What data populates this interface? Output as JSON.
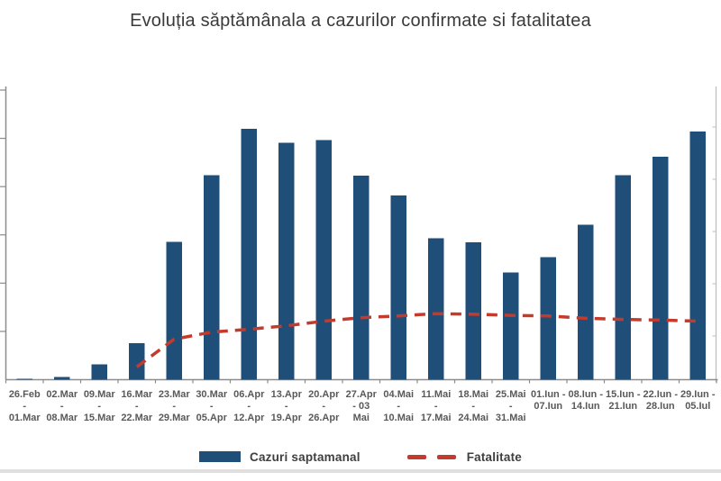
{
  "title": "Evoluția săptămânala a cazurilor confirmate si fatalitatea",
  "colors": {
    "bar": "#1f4e79",
    "line": "#c23b2d",
    "axis": "#8c8c8c",
    "axis_right": "#bdbdbd",
    "label": "#595959",
    "title": "#3a3a3a",
    "legend_text": "#3f3f3f",
    "bottom_band": "#d9d9d9"
  },
  "chart_data": {
    "type": "bar",
    "combo": "bar + dashed line (secondary axis)",
    "title": "Evoluția săptămânala a cazurilor confirmate si fatalitatea",
    "categories": [
      "26.Feb - 01.Mar",
      "02.Mar - 08.Mar",
      "09.Mar - 15.Mar",
      "16.Mar - 22.Mar",
      "23.Mar - 29.Mar",
      "30.Mar - 05.Apr",
      "06.Apr - 12.Apr",
      "13.Apr - 19.Apr",
      "20.Apr - 26.Apr",
      "27.Apr - 03 Mai",
      "04.Mai - 10.Mai",
      "11.Mai - 17.Mai",
      "18.Mai - 24.Mai",
      "25.Mai - 31.Mai",
      "01.Iun - 07.Iun",
      "08.Iun - 14.Iun",
      "15.Iun - 21.Iun",
      "22.Iun - 28.Iun",
      "29.Iun - 05.Iul"
    ],
    "categories_lines": [
      [
        "26.Feb",
        "-",
        "01.Mar"
      ],
      [
        "02.Mar",
        "-",
        "08.Mar"
      ],
      [
        "09.Mar",
        "-",
        "15.Mar"
      ],
      [
        "16.Mar",
        "-",
        "22.Mar"
      ],
      [
        "23.Mar",
        "-",
        "29.Mar"
      ],
      [
        "30.Mar",
        "-",
        "05.Apr"
      ],
      [
        "06.Apr",
        "-",
        "12.Apr"
      ],
      [
        "13.Apr",
        "-",
        "19.Apr"
      ],
      [
        "20.Apr",
        "-",
        "26.Apr"
      ],
      [
        "27.Apr",
        "- 03",
        "Mai"
      ],
      [
        "04.Mai",
        "-",
        "10.Mai"
      ],
      [
        "11.Mai",
        "-",
        "17.Mai"
      ],
      [
        "18.Mai",
        "-",
        "24.Mai"
      ],
      [
        "25.Mai",
        "-",
        "31.Mai"
      ],
      [
        "01.Iun -",
        "07.Iun",
        ""
      ],
      [
        "08.Iun -",
        "14.Iun",
        ""
      ],
      [
        "15.Iun -",
        "21.Iun",
        ""
      ],
      [
        "22.Iun -",
        "28.Iun",
        ""
      ],
      [
        "29.Iun -",
        "05.Iul",
        ""
      ]
    ],
    "series": [
      {
        "name": "Cazuri saptamanal",
        "type": "bar",
        "color": "#1f4e79",
        "axis": "primary",
        "values": [
          10,
          30,
          160,
          380,
          1430,
          2120,
          2600,
          2455,
          2480,
          2115,
          1910,
          1465,
          1425,
          1110,
          1270,
          1605,
          2120,
          2310,
          2570
        ]
      },
      {
        "name": "Fatalitate",
        "type": "line",
        "dashed": true,
        "color": "#c23b2d",
        "axis": "secondary",
        "values": [
          null,
          null,
          null,
          1.1,
          3.5,
          4.1,
          4.35,
          4.65,
          5.05,
          5.35,
          5.5,
          5.7,
          5.65,
          5.55,
          5.5,
          5.3,
          5.2,
          5.15,
          5.05
        ]
      }
    ],
    "y_axis": {
      "min": 0,
      "max": 3000,
      "tick_count": 6,
      "tick_labels_visible": false
    },
    "y2_axis": {
      "min": 0,
      "max": 25,
      "tick_labels_visible": false
    },
    "legend_position": "bottom",
    "grid": false
  }
}
